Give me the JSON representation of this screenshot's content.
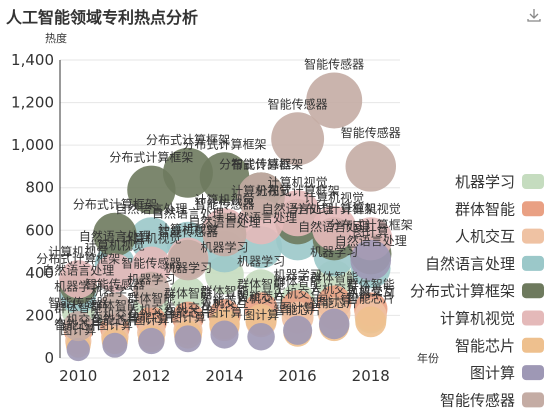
{
  "chart_data": {
    "type": "scatter",
    "title": "人工智能领域专利热点分析",
    "ylabel": "热度",
    "xlabel": "年份",
    "xlim": [
      2009.5,
      2018.8
    ],
    "ylim": [
      0,
      1400
    ],
    "xticks": [
      "2010",
      "2012",
      "2014",
      "2016",
      "2018"
    ],
    "xtick_values": [
      2010,
      2012,
      2014,
      2016,
      2018
    ],
    "yticks": [
      "0",
      "200",
      "400",
      "600",
      "800",
      "1,000",
      "1,200",
      "1,400"
    ],
    "ytick_values": [
      0,
      200,
      400,
      600,
      800,
      1000,
      1200,
      1400
    ],
    "grid": true,
    "legend_position": "right",
    "series": [
      {
        "name": "机器学习",
        "color": "#c5dcbf",
        "points": [
          [
            2010,
            220
          ],
          [
            2011,
            200
          ],
          [
            2012,
            250
          ],
          [
            2013,
            300
          ],
          [
            2014,
            390
          ],
          [
            2015,
            330
          ],
          [
            2016,
            270
          ],
          [
            2017,
            370
          ],
          [
            2018,
            190
          ]
        ]
      },
      {
        "name": "群体智能",
        "color": "#e9a083",
        "points": [
          [
            2010,
            130
          ],
          [
            2011,
            140
          ],
          [
            2012,
            170
          ],
          [
            2013,
            190
          ],
          [
            2014,
            200
          ],
          [
            2015,
            230
          ],
          [
            2016,
            240
          ],
          [
            2017,
            260
          ],
          [
            2018,
            230
          ]
        ]
      },
      {
        "name": "人机交互",
        "color": "#efc2a3",
        "points": [
          [
            2010,
            80
          ],
          [
            2011,
            100
          ],
          [
            2012,
            120
          ],
          [
            2013,
            130
          ],
          [
            2014,
            150
          ],
          [
            2015,
            170
          ],
          [
            2016,
            190
          ],
          [
            2017,
            210
          ],
          [
            2018,
            200
          ]
        ]
      },
      {
        "name": "自然语言处理",
        "color": "#9bc8c9",
        "points": [
          [
            2010,
            290
          ],
          [
            2011,
            440
          ],
          [
            2012,
            560
          ],
          [
            2013,
            540
          ],
          [
            2014,
            500
          ],
          [
            2015,
            520
          ],
          [
            2016,
            560
          ],
          [
            2017,
            480
          ],
          [
            2018,
            420
          ]
        ]
      },
      {
        "name": "分布式计算框架",
        "color": "#6e7a5e",
        "points": [
          [
            2010,
            340
          ],
          [
            2011,
            580
          ],
          [
            2012,
            790
          ],
          [
            2013,
            870
          ],
          [
            2014,
            850
          ],
          [
            2015,
            760
          ],
          [
            2016,
            640
          ],
          [
            2017,
            560
          ],
          [
            2018,
            490
          ]
        ]
      },
      {
        "name": "计算机视觉",
        "color": "#e4b9b9",
        "points": [
          [
            2010,
            370
          ],
          [
            2011,
            400
          ],
          [
            2012,
            430
          ],
          [
            2013,
            470
          ],
          [
            2014,
            600
          ],
          [
            2015,
            640
          ],
          [
            2016,
            680
          ],
          [
            2017,
            610
          ],
          [
            2018,
            560
          ]
        ]
      },
      {
        "name": "智能芯片",
        "color": "#eec08e",
        "points": [
          [
            2010,
            60
          ],
          [
            2011,
            80
          ],
          [
            2012,
            90
          ],
          [
            2013,
            110
          ],
          [
            2014,
            160
          ],
          [
            2015,
            180
          ],
          [
            2016,
            120
          ],
          [
            2017,
            150
          ],
          [
            2018,
            170
          ]
        ]
      },
      {
        "name": "图计算",
        "color": "#9e98b5",
        "points": [
          [
            2010,
            40
          ],
          [
            2011,
            60
          ],
          [
            2012,
            80
          ],
          [
            2013,
            90
          ],
          [
            2014,
            110
          ],
          [
            2015,
            100
          ],
          [
            2016,
            130
          ],
          [
            2017,
            160
          ],
          [
            2018,
            460
          ]
        ]
      },
      {
        "name": "智能传感器",
        "color": "#c4aca4",
        "points": [
          [
            2010,
            150
          ],
          [
            2011,
            230
          ],
          [
            2012,
            320
          ],
          [
            2013,
            460
          ],
          [
            2014,
            580
          ],
          [
            2015,
            760
          ],
          [
            2016,
            1030
          ],
          [
            2017,
            1210
          ],
          [
            2018,
            900
          ]
        ]
      }
    ]
  }
}
